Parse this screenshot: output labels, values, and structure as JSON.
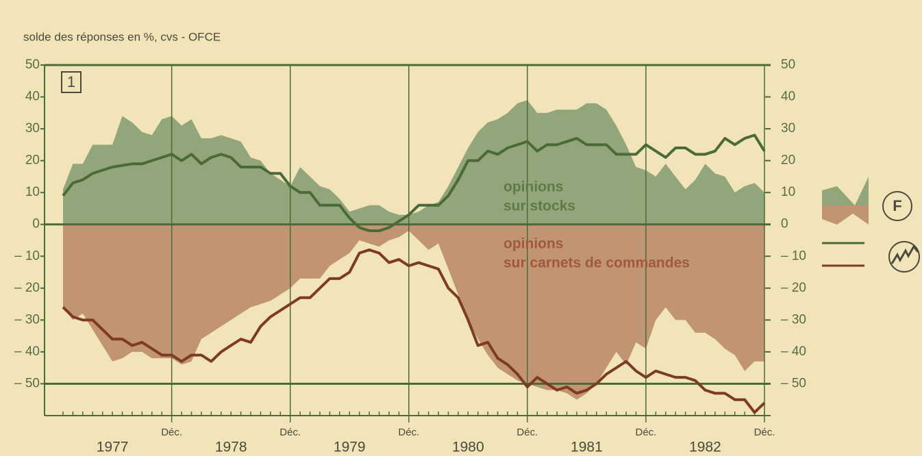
{
  "chart_data": {
    "type": "area-line",
    "title": "solde des réponses en %, cvs - OFCE",
    "panel_label": "1",
    "annotations": [
      "opinions",
      "sur stocks",
      "opinions",
      "sur carnets de commandes"
    ],
    "legend_labels": [
      "F"
    ],
    "year_labels": [
      "1977",
      "1978",
      "1979",
      "1980",
      "1981",
      "1982"
    ],
    "categories": [
      null,
      null,
      null,
      null,
      null,
      null,
      null,
      null,
      null,
      null,
      null,
      "Déc.",
      null,
      null,
      null,
      null,
      null,
      null,
      null,
      null,
      null,
      null,
      null,
      "Déc.",
      null,
      null,
      null,
      null,
      null,
      null,
      null,
      null,
      null,
      null,
      null,
      "Déc.",
      null,
      null,
      null,
      null,
      null,
      null,
      null,
      null,
      null,
      null,
      null,
      "Déc.",
      null,
      null,
      null,
      null,
      null,
      null,
      null,
      null,
      null,
      null,
      null,
      "Déc.",
      null,
      null,
      null,
      null,
      null,
      null,
      null,
      null,
      null,
      null,
      null,
      "Déc."
    ],
    "ylim": [
      -60,
      50
    ],
    "yticks": [
      {
        "value": 50,
        "label": "50"
      },
      {
        "value": 40,
        "label": "40"
      },
      {
        "value": 30,
        "label": "30"
      },
      {
        "value": 20,
        "label": "20"
      },
      {
        "value": 10,
        "label": "10"
      },
      {
        "value": 0,
        "label": "0"
      },
      {
        "value": -10,
        "label": "– 10"
      },
      {
        "value": -20,
        "label": "– 20"
      },
      {
        "value": -30,
        "label": "– 30"
      },
      {
        "value": -40,
        "label": "– 40"
      },
      {
        "value": -50,
        "label": "– 50"
      }
    ],
    "hlines": [
      50,
      0,
      -50
    ],
    "series": [
      {
        "kind": "area",
        "color": "#93a57a",
        "values": [
          11,
          19,
          19,
          25,
          25,
          25,
          34,
          32,
          29,
          28,
          33,
          34,
          31,
          33,
          27,
          27,
          28,
          27,
          26,
          21,
          20,
          16,
          14,
          12,
          18,
          15,
          12,
          11,
          8,
          4,
          5,
          6,
          6,
          4,
          3,
          3,
          4,
          6,
          7,
          12,
          18,
          24,
          29,
          32,
          33,
          35,
          38,
          39,
          35,
          35,
          36,
          36,
          36,
          38,
          38,
          36,
          31,
          25,
          18,
          17,
          15,
          19,
          15,
          11,
          14,
          19,
          16,
          15,
          10,
          12,
          13,
          10
        ]
      },
      {
        "kind": "area",
        "color": "#c29572",
        "values": [
          -26,
          -30,
          -28,
          -33,
          -38,
          -43,
          -42,
          -40,
          -40,
          -42,
          -42,
          -42,
          -44,
          -43,
          -36,
          -34,
          -32,
          -30,
          -28,
          -26,
          -25,
          -24,
          -22,
          -20,
          -17,
          -17,
          -17,
          -13,
          -11,
          -9,
          -5,
          -6,
          -7,
          -5,
          -4,
          -2,
          -5,
          -8,
          -6,
          -14,
          -22,
          -30,
          -36,
          -41,
          -45,
          -47,
          -49,
          -50,
          -51,
          -52,
          -52,
          -53,
          -55,
          -53,
          -50,
          -45,
          -40,
          -44,
          -37,
          -39,
          -30,
          -26,
          -30,
          -30,
          -34,
          -34,
          -36,
          -39,
          -41,
          -46,
          -43,
          -43
        ]
      },
      {
        "kind": "line",
        "color": "#4b6a3a",
        "values": [
          9,
          13,
          14,
          16,
          17,
          18,
          18.5,
          19,
          19,
          20,
          21,
          22,
          20,
          22,
          19,
          21,
          22,
          21,
          18,
          18,
          18,
          16,
          16,
          12,
          10,
          10,
          6,
          6,
          6,
          2,
          -1,
          -2,
          -2,
          -1,
          1,
          3,
          6,
          6,
          6,
          9,
          14,
          20,
          20,
          23,
          22,
          24,
          25,
          26,
          23,
          25,
          25,
          26,
          27,
          25,
          25,
          25,
          22,
          22,
          22,
          25,
          23,
          21,
          24,
          24,
          22,
          22,
          23,
          27,
          25,
          27,
          28,
          23
        ]
      },
      {
        "kind": "line",
        "color": "#7d3b22",
        "values": [
          -26,
          -29,
          -30,
          -30,
          -33,
          -36,
          -36,
          -38,
          -37,
          -39,
          -41,
          -41,
          -43,
          -41,
          -41,
          -43,
          -40,
          -38,
          -36,
          -37,
          -32,
          -29,
          -27,
          -25,
          -23,
          -23,
          -20,
          -17,
          -17,
          -15,
          -9,
          -8,
          -9,
          -12,
          -11,
          -13,
          -12,
          -13,
          -14,
          -20,
          -23,
          -30,
          -38,
          -37,
          -42,
          -44,
          -47,
          -51,
          -48,
          -50,
          -52,
          -51,
          -53,
          -52,
          -50,
          -47,
          -45,
          -43,
          -46,
          -48,
          -46,
          -47,
          -48,
          -48,
          -49,
          -52,
          -53,
          -53,
          -55,
          -55,
          -59,
          -56
        ]
      }
    ]
  }
}
